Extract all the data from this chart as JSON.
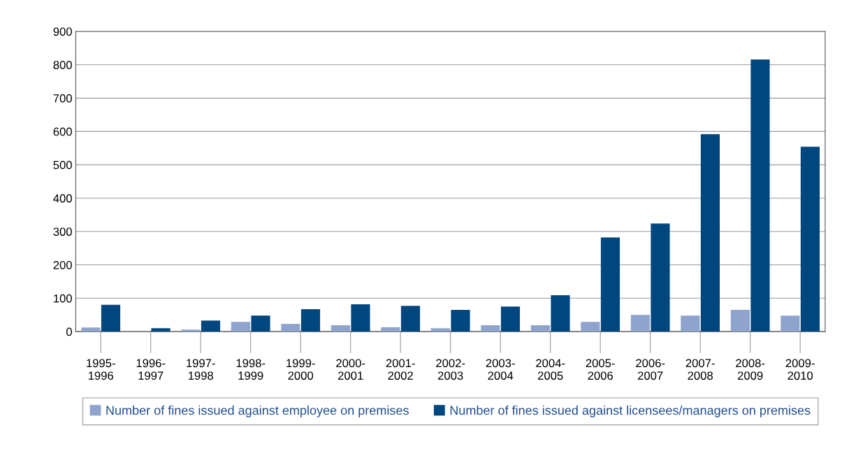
{
  "chart_data": {
    "type": "bar",
    "categories": [
      "1995-\n1996",
      "1996-\n1997",
      "1997-\n1998",
      "1998-\n1999",
      "1999-\n2000",
      "2000-\n2001",
      "2001-\n2002",
      "2002-\n2003",
      "2003-\n2004",
      "2004-\n2005",
      "2005-\n2006",
      "2006-\n2007",
      "2007-\n2008",
      "2008-\n2009",
      "2009-\n2010"
    ],
    "series": [
      {
        "name": "Number of fines issued against employee on premises",
        "color": "#8ea4cc",
        "values": [
          12,
          0,
          6,
          29,
          23,
          19,
          13,
          10,
          19,
          19,
          29,
          50,
          48,
          65,
          48
        ]
      },
      {
        "name": "Number of fines issued against licensees/managers on premises",
        "color": "#00467f",
        "values": [
          80,
          10,
          33,
          48,
          67,
          82,
          77,
          65,
          75,
          109,
          282,
          324,
          592,
          816,
          554
        ]
      }
    ],
    "ylim": [
      0,
      900
    ],
    "yticks": [
      0,
      100,
      200,
      300,
      400,
      500,
      600,
      700,
      800,
      900
    ],
    "grid": "y",
    "legend": "bottom"
  }
}
